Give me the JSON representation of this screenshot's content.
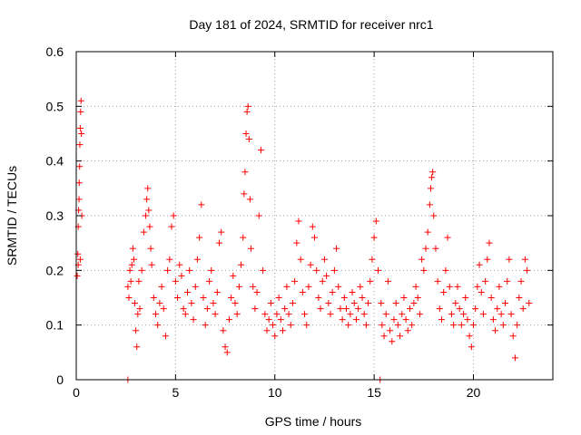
{
  "chart_data": {
    "type": "scatter",
    "title": "Day 181 of 2024, SRMTID for receiver nrc1",
    "xlabel": "GPS time / hours",
    "ylabel": "SRMTID / TECUs",
    "xlim": [
      0,
      24
    ],
    "ylim": [
      0,
      0.6
    ],
    "x_ticks": [
      0,
      5,
      10,
      15,
      20
    ],
    "x_tick_labels": [
      "0",
      "5",
      "10",
      "15",
      "20"
    ],
    "y_ticks": [
      0,
      0.1,
      0.2,
      0.3,
      0.4,
      0.5,
      0.6
    ],
    "y_tick_labels": [
      "0",
      "0.1",
      "0.2",
      "0.3",
      "0.4",
      "0.5",
      "0.6"
    ],
    "grid": true,
    "marker": "+",
    "marker_color": "#ff0000",
    "series": [
      {
        "name": "SRMTID",
        "points": [
          [
            0.05,
            0.19
          ],
          [
            0.08,
            0.23
          ],
          [
            0.1,
            0.28
          ],
          [
            0.12,
            0.31
          ],
          [
            0.14,
            0.33
          ],
          [
            0.15,
            0.36
          ],
          [
            0.17,
            0.39
          ],
          [
            0.18,
            0.43
          ],
          [
            0.2,
            0.46
          ],
          [
            0.22,
            0.49
          ],
          [
            0.24,
            0.51
          ],
          [
            0.26,
            0.45
          ],
          [
            0.28,
            0.3
          ],
          [
            0.1,
            0.21
          ],
          [
            0.2,
            0.22
          ],
          [
            2.6,
            0.0
          ],
          [
            2.6,
            0.17
          ],
          [
            2.65,
            0.15
          ],
          [
            2.7,
            0.2
          ],
          [
            2.75,
            0.18
          ],
          [
            2.8,
            0.21
          ],
          [
            2.85,
            0.24
          ],
          [
            2.9,
            0.22
          ],
          [
            2.95,
            0.14
          ],
          [
            3.0,
            0.09
          ],
          [
            3.05,
            0.06
          ],
          [
            3.1,
            0.12
          ],
          [
            3.15,
            0.18
          ],
          [
            3.2,
            0.13
          ],
          [
            3.3,
            0.2
          ],
          [
            3.4,
            0.27
          ],
          [
            3.5,
            0.3
          ],
          [
            3.55,
            0.33
          ],
          [
            3.6,
            0.35
          ],
          [
            3.65,
            0.31
          ],
          [
            3.7,
            0.28
          ],
          [
            3.75,
            0.24
          ],
          [
            3.8,
            0.21
          ],
          [
            3.9,
            0.15
          ],
          [
            4.0,
            0.12
          ],
          [
            4.1,
            0.1
          ],
          [
            4.2,
            0.14
          ],
          [
            4.3,
            0.17
          ],
          [
            4.4,
            0.13
          ],
          [
            4.5,
            0.08
          ],
          [
            4.6,
            0.2
          ],
          [
            4.7,
            0.22
          ],
          [
            4.8,
            0.28
          ],
          [
            4.9,
            0.3
          ],
          [
            5.0,
            0.18
          ],
          [
            5.1,
            0.15
          ],
          [
            5.2,
            0.21
          ],
          [
            5.3,
            0.19
          ],
          [
            5.4,
            0.13
          ],
          [
            5.5,
            0.12
          ],
          [
            5.6,
            0.16
          ],
          [
            5.7,
            0.2
          ],
          [
            5.8,
            0.14
          ],
          [
            5.9,
            0.11
          ],
          [
            6.0,
            0.17
          ],
          [
            6.1,
            0.22
          ],
          [
            6.2,
            0.26
          ],
          [
            6.3,
            0.32
          ],
          [
            6.4,
            0.15
          ],
          [
            6.5,
            0.1
          ],
          [
            6.6,
            0.13
          ],
          [
            6.7,
            0.18
          ],
          [
            6.8,
            0.2
          ],
          [
            6.9,
            0.14
          ],
          [
            7.0,
            0.12
          ],
          [
            7.1,
            0.16
          ],
          [
            7.2,
            0.25
          ],
          [
            7.3,
            0.27
          ],
          [
            7.4,
            0.09
          ],
          [
            7.5,
            0.06
          ],
          [
            7.6,
            0.05
          ],
          [
            7.7,
            0.11
          ],
          [
            7.8,
            0.15
          ],
          [
            7.9,
            0.19
          ],
          [
            8.0,
            0.14
          ],
          [
            8.1,
            0.12
          ],
          [
            8.2,
            0.17
          ],
          [
            8.3,
            0.21
          ],
          [
            8.4,
            0.26
          ],
          [
            8.45,
            0.34
          ],
          [
            8.5,
            0.38
          ],
          [
            8.55,
            0.45
          ],
          [
            8.6,
            0.49
          ],
          [
            8.65,
            0.5
          ],
          [
            8.7,
            0.44
          ],
          [
            8.75,
            0.33
          ],
          [
            8.8,
            0.24
          ],
          [
            8.9,
            0.17
          ],
          [
            9.0,
            0.13
          ],
          [
            9.1,
            0.16
          ],
          [
            9.2,
            0.3
          ],
          [
            9.3,
            0.42
          ],
          [
            9.4,
            0.2
          ],
          [
            9.5,
            0.12
          ],
          [
            9.6,
            0.09
          ],
          [
            9.7,
            0.11
          ],
          [
            9.8,
            0.14
          ],
          [
            9.9,
            0.1
          ],
          [
            10.0,
            0.08
          ],
          [
            10.1,
            0.12
          ],
          [
            10.2,
            0.15
          ],
          [
            10.3,
            0.11
          ],
          [
            10.4,
            0.09
          ],
          [
            10.5,
            0.13
          ],
          [
            10.6,
            0.17
          ],
          [
            10.7,
            0.12
          ],
          [
            10.8,
            0.1
          ],
          [
            10.9,
            0.14
          ],
          [
            11.0,
            0.18
          ],
          [
            11.1,
            0.25
          ],
          [
            11.2,
            0.29
          ],
          [
            11.3,
            0.22
          ],
          [
            11.4,
            0.16
          ],
          [
            11.5,
            0.12
          ],
          [
            11.6,
            0.1
          ],
          [
            11.7,
            0.17
          ],
          [
            11.8,
            0.21
          ],
          [
            11.9,
            0.28
          ],
          [
            12.0,
            0.26
          ],
          [
            12.1,
            0.2
          ],
          [
            12.2,
            0.15
          ],
          [
            12.3,
            0.13
          ],
          [
            12.4,
            0.18
          ],
          [
            12.5,
            0.22
          ],
          [
            12.6,
            0.19
          ],
          [
            12.7,
            0.14
          ],
          [
            12.8,
            0.12
          ],
          [
            12.9,
            0.16
          ],
          [
            13.0,
            0.2
          ],
          [
            13.1,
            0.24
          ],
          [
            13.2,
            0.17
          ],
          [
            13.3,
            0.13
          ],
          [
            13.4,
            0.11
          ],
          [
            13.5,
            0.15
          ],
          [
            13.6,
            0.13
          ],
          [
            13.7,
            0.1
          ],
          [
            13.8,
            0.12
          ],
          [
            13.9,
            0.16
          ],
          [
            14.0,
            0.14
          ],
          [
            14.1,
            0.11
          ],
          [
            14.2,
            0.13
          ],
          [
            14.3,
            0.17
          ],
          [
            14.4,
            0.15
          ],
          [
            14.5,
            0.12
          ],
          [
            14.6,
            0.1
          ],
          [
            14.7,
            0.14
          ],
          [
            14.8,
            0.18
          ],
          [
            14.9,
            0.22
          ],
          [
            15.0,
            0.26
          ],
          [
            15.1,
            0.29
          ],
          [
            15.2,
            0.2
          ],
          [
            15.3,
            0.0
          ],
          [
            15.35,
            0.14
          ],
          [
            15.4,
            0.1
          ],
          [
            15.5,
            0.08
          ],
          [
            15.6,
            0.12
          ],
          [
            15.7,
            0.18
          ],
          [
            15.8,
            0.09
          ],
          [
            15.9,
            0.07
          ],
          [
            16.0,
            0.11
          ],
          [
            16.1,
            0.14
          ],
          [
            16.2,
            0.1
          ],
          [
            16.3,
            0.08
          ],
          [
            16.4,
            0.12
          ],
          [
            16.5,
            0.15
          ],
          [
            16.6,
            0.11
          ],
          [
            16.7,
            0.09
          ],
          [
            16.8,
            0.13
          ],
          [
            16.9,
            0.1
          ],
          [
            17.0,
            0.14
          ],
          [
            17.1,
            0.17
          ],
          [
            17.2,
            0.15
          ],
          [
            17.3,
            0.12
          ],
          [
            17.4,
            0.22
          ],
          [
            17.5,
            0.2
          ],
          [
            17.6,
            0.24
          ],
          [
            17.7,
            0.27
          ],
          [
            17.8,
            0.32
          ],
          [
            17.85,
            0.35
          ],
          [
            17.9,
            0.37
          ],
          [
            17.95,
            0.38
          ],
          [
            18.0,
            0.3
          ],
          [
            18.1,
            0.24
          ],
          [
            18.2,
            0.18
          ],
          [
            18.3,
            0.13
          ],
          [
            18.4,
            0.11
          ],
          [
            18.5,
            0.16
          ],
          [
            18.6,
            0.2
          ],
          [
            18.7,
            0.26
          ],
          [
            18.8,
            0.17
          ],
          [
            18.9,
            0.12
          ],
          [
            19.0,
            0.1
          ],
          [
            19.1,
            0.14
          ],
          [
            19.2,
            0.17
          ],
          [
            19.3,
            0.13
          ],
          [
            19.4,
            0.1
          ],
          [
            19.5,
            0.12
          ],
          [
            19.6,
            0.15
          ],
          [
            19.7,
            0.11
          ],
          [
            19.8,
            0.08
          ],
          [
            19.9,
            0.06
          ],
          [
            20.0,
            0.1
          ],
          [
            20.1,
            0.13
          ],
          [
            20.2,
            0.17
          ],
          [
            20.3,
            0.21
          ],
          [
            20.4,
            0.16
          ],
          [
            20.5,
            0.12
          ],
          [
            20.6,
            0.18
          ],
          [
            20.7,
            0.22
          ],
          [
            20.8,
            0.25
          ],
          [
            20.9,
            0.15
          ],
          [
            21.0,
            0.11
          ],
          [
            21.1,
            0.09
          ],
          [
            21.2,
            0.13
          ],
          [
            21.3,
            0.17
          ],
          [
            21.4,
            0.12
          ],
          [
            21.5,
            0.1
          ],
          [
            21.6,
            0.14
          ],
          [
            21.7,
            0.18
          ],
          [
            21.8,
            0.22
          ],
          [
            21.9,
            0.12
          ],
          [
            22.0,
            0.08
          ],
          [
            22.1,
            0.04
          ],
          [
            22.2,
            0.1
          ],
          [
            22.3,
            0.15
          ],
          [
            22.4,
            0.18
          ],
          [
            22.5,
            0.13
          ],
          [
            22.6,
            0.22
          ],
          [
            22.7,
            0.2
          ],
          [
            22.8,
            0.14
          ]
        ]
      }
    ]
  }
}
